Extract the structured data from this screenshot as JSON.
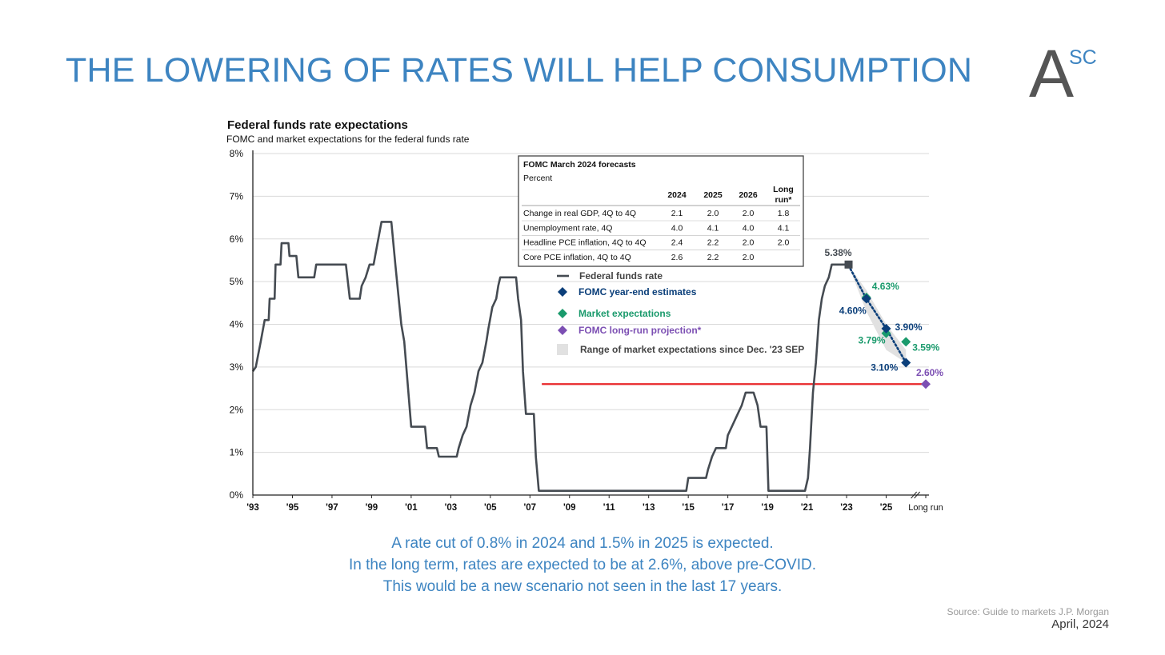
{
  "slide": {
    "title": "THE LOWERING OF RATES WILL HELP CONSUMPTION",
    "logo": {
      "letter": "A",
      "superscript": "SC"
    },
    "caption_lines": [
      "A rate cut of 0.8% in 2024 and 1.5% in 2025 is expected.",
      "In the long term, rates are expected to be at 2.6%, above pre-COVID.",
      "This would be a new scenario not seen in the last 17 years."
    ],
    "source": "Source: Guide to markets J.P. Morgan",
    "date": "April, 2024"
  },
  "colors": {
    "title": "#3d84c1",
    "fed_line": "#454b52",
    "fomc": "#0b3f7a",
    "market": "#1a9a6c",
    "longrun": "#7c4fb3",
    "range": "#e1e1e1",
    "reference_line": "#e8262a",
    "grid": "#d9d9d9"
  },
  "chart_data": {
    "type": "line",
    "title": "Federal funds rate expectations",
    "subtitle": "FOMC and market expectations for the federal funds rate",
    "ylim": [
      0,
      8
    ],
    "y_ticks": [
      "0%",
      "1%",
      "2%",
      "3%",
      "4%",
      "5%",
      "6%",
      "7%",
      "8%"
    ],
    "x_range": [
      1993,
      2028
    ],
    "x_ticks": [
      {
        "x": 1993,
        "label": "'93"
      },
      {
        "x": 1995,
        "label": "'95"
      },
      {
        "x": 1997,
        "label": "'97"
      },
      {
        "x": 1999,
        "label": "'99"
      },
      {
        "x": 2001,
        "label": "'01"
      },
      {
        "x": 2003,
        "label": "'03"
      },
      {
        "x": 2005,
        "label": "'05"
      },
      {
        "x": 2007,
        "label": "'07"
      },
      {
        "x": 2009,
        "label": "'09"
      },
      {
        "x": 2011,
        "label": "'11"
      },
      {
        "x": 2013,
        "label": "'13"
      },
      {
        "x": 2015,
        "label": "'15"
      },
      {
        "x": 2017,
        "label": "'17"
      },
      {
        "x": 2019,
        "label": "'19"
      },
      {
        "x": 2021,
        "label": "'21"
      },
      {
        "x": 2023,
        "label": "'23"
      },
      {
        "x": 2025,
        "label": "'25"
      },
      {
        "x": 2027,
        "label": "Long run"
      }
    ],
    "grid": true,
    "legend": {
      "position": "center",
      "entries": [
        {
          "label": "Federal funds rate",
          "marker": "line",
          "color_key": "fed_line"
        },
        {
          "label": "FOMC year-end estimates",
          "marker": "diamond",
          "color_key": "fomc"
        },
        {
          "label": "Market expectations",
          "marker": "diamond",
          "color_key": "market"
        },
        {
          "label": "FOMC long-run projection*",
          "marker": "diamond",
          "color_key": "longrun"
        },
        {
          "label": "Range of market expectations since Dec. '23 SEP",
          "marker": "square",
          "color_key": "range"
        }
      ]
    },
    "series": [
      {
        "name": "Federal funds rate",
        "points": [
          [
            1993.0,
            2.9
          ],
          [
            1993.15,
            3.0
          ],
          [
            1993.4,
            3.6
          ],
          [
            1993.6,
            4.1
          ],
          [
            1993.8,
            4.1
          ],
          [
            1993.85,
            4.6
          ],
          [
            1994.1,
            4.6
          ],
          [
            1994.15,
            5.4
          ],
          [
            1994.4,
            5.4
          ],
          [
            1994.45,
            5.9
          ],
          [
            1994.8,
            5.9
          ],
          [
            1994.85,
            5.6
          ],
          [
            1995.2,
            5.6
          ],
          [
            1995.3,
            5.1
          ],
          [
            1996.1,
            5.1
          ],
          [
            1996.2,
            5.4
          ],
          [
            1997.7,
            5.4
          ],
          [
            1997.9,
            4.6
          ],
          [
            1998.4,
            4.6
          ],
          [
            1998.5,
            4.9
          ],
          [
            1998.7,
            5.1
          ],
          [
            1998.9,
            5.4
          ],
          [
            1999.1,
            5.4
          ],
          [
            1999.3,
            5.9
          ],
          [
            1999.5,
            6.4
          ],
          [
            2000.0,
            6.4
          ],
          [
            2000.2,
            5.4
          ],
          [
            2000.5,
            4.0
          ],
          [
            2000.65,
            3.6
          ],
          [
            2000.95,
            1.9
          ],
          [
            2001.0,
            1.6
          ],
          [
            2001.7,
            1.6
          ],
          [
            2001.8,
            1.1
          ],
          [
            2002.3,
            1.1
          ],
          [
            2002.4,
            0.9
          ],
          [
            2003.3,
            0.9
          ],
          [
            2003.4,
            1.1
          ],
          [
            2003.6,
            1.4
          ],
          [
            2003.8,
            1.6
          ],
          [
            2004.0,
            2.1
          ],
          [
            2004.2,
            2.4
          ],
          [
            2004.4,
            2.9
          ],
          [
            2004.6,
            3.1
          ],
          [
            2004.8,
            3.6
          ],
          [
            2004.9,
            3.9
          ],
          [
            2005.1,
            4.4
          ],
          [
            2005.3,
            4.6
          ],
          [
            2005.4,
            4.9
          ],
          [
            2005.5,
            5.1
          ],
          [
            2006.3,
            5.1
          ],
          [
            2006.4,
            4.6
          ],
          [
            2006.55,
            4.1
          ],
          [
            2006.65,
            2.9
          ],
          [
            2006.8,
            1.9
          ],
          [
            2007.2,
            1.9
          ],
          [
            2007.3,
            0.9
          ],
          [
            2007.45,
            0.1
          ],
          [
            2014.9,
            0.1
          ],
          [
            2015.0,
            0.4
          ],
          [
            2015.9,
            0.4
          ],
          [
            2016.0,
            0.6
          ],
          [
            2016.2,
            0.9
          ],
          [
            2016.4,
            1.1
          ],
          [
            2016.9,
            1.1
          ],
          [
            2017.0,
            1.4
          ],
          [
            2017.2,
            1.6
          ],
          [
            2017.5,
            1.9
          ],
          [
            2017.7,
            2.1
          ],
          [
            2017.9,
            2.4
          ],
          [
            2018.3,
            2.4
          ],
          [
            2018.5,
            2.1
          ],
          [
            2018.65,
            1.6
          ],
          [
            2018.95,
            1.6
          ],
          [
            2019.05,
            0.1
          ],
          [
            2020.9,
            0.1
          ],
          [
            2021.05,
            0.4
          ],
          [
            2021.15,
            1.1
          ],
          [
            2021.3,
            2.4
          ],
          [
            2021.45,
            3.1
          ],
          [
            2021.6,
            4.1
          ],
          [
            2021.75,
            4.6
          ],
          [
            2021.9,
            4.9
          ],
          [
            2022.1,
            5.1
          ],
          [
            2022.25,
            5.4
          ],
          [
            2023.1,
            5.4
          ]
        ]
      },
      {
        "name": "FOMC year-end estimates",
        "points": [
          [
            2023.1,
            5.38
          ],
          [
            2024.0,
            4.6
          ],
          [
            2025.0,
            3.9
          ],
          [
            2026.0,
            3.1
          ]
        ]
      },
      {
        "name": "Market expectations",
        "points": [
          [
            2024.0,
            4.63
          ],
          [
            2025.0,
            3.79
          ],
          [
            2026.0,
            3.59
          ]
        ]
      },
      {
        "name": "FOMC long-run projection*",
        "points": [
          [
            2027.0,
            2.6
          ]
        ]
      },
      {
        "name": "Range of market expectations since Dec. '23 SEP",
        "upper": [
          [
            2023.1,
            5.38
          ],
          [
            2024.0,
            4.8
          ],
          [
            2025.0,
            4.0
          ],
          [
            2026.0,
            3.4
          ]
        ],
        "lower": [
          [
            2023.1,
            5.38
          ],
          [
            2024.0,
            4.3
          ],
          [
            2025.0,
            3.4
          ],
          [
            2026.0,
            3.1
          ]
        ]
      }
    ],
    "reference_line": {
      "x_from": 2007.6,
      "x_to": 2027.0,
      "y": 2.6
    },
    "annotations": [
      {
        "text": "5.38%",
        "x": 2023.1,
        "y": 5.38,
        "color_key": "fed_line"
      },
      {
        "text": "4.63%",
        "x": 2024.0,
        "y": 4.63,
        "color_key": "market"
      },
      {
        "text": "4.60%",
        "x": 2024.0,
        "y": 4.6,
        "color_key": "fomc"
      },
      {
        "text": "3.90%",
        "x": 2025.0,
        "y": 3.9,
        "color_key": "fomc"
      },
      {
        "text": "3.79%",
        "x": 2025.0,
        "y": 3.79,
        "color_key": "market"
      },
      {
        "text": "3.59%",
        "x": 2026.0,
        "y": 3.59,
        "color_key": "market"
      },
      {
        "text": "3.10%",
        "x": 2026.0,
        "y": 3.1,
        "color_key": "fomc"
      },
      {
        "text": "2.60%",
        "x": 2027.0,
        "y": 2.6,
        "color_key": "longrun"
      }
    ],
    "table": {
      "title": "FOMC March 2024 forecasts",
      "subtitle": "Percent",
      "columns": [
        "2024",
        "2025",
        "2026",
        "Long run*"
      ],
      "rows": [
        {
          "label": "Change in real GDP, 4Q to 4Q",
          "values": [
            "2.1",
            "2.0",
            "2.0",
            "1.8"
          ]
        },
        {
          "label": "Unemployment rate, 4Q",
          "values": [
            "4.0",
            "4.1",
            "4.0",
            "4.1"
          ]
        },
        {
          "label": "Headline PCE inflation, 4Q to 4Q",
          "values": [
            "2.4",
            "2.2",
            "2.0",
            "2.0"
          ]
        },
        {
          "label": "Core PCE inflation, 4Q to 4Q",
          "values": [
            "2.6",
            "2.2",
            "2.0",
            ""
          ]
        }
      ]
    }
  }
}
